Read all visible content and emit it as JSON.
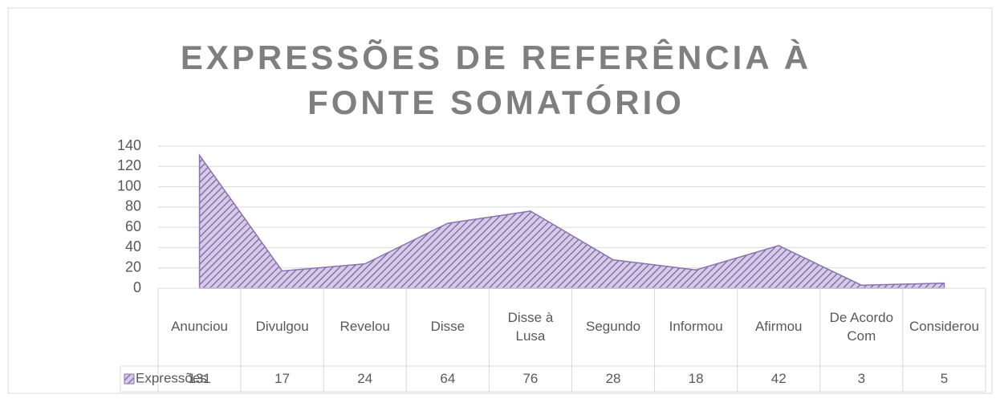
{
  "chart_data": {
    "type": "area",
    "title": "EXPRESSÕES DE REFERÊNCIA À FONTE SOMATÓRIO",
    "categories": [
      "Anunciou",
      "Divulgou",
      "Revelou",
      "Disse",
      "Disse à Lusa",
      "Segundo",
      "Informou",
      "Afirmou",
      "De Acordo Com",
      "Considerou"
    ],
    "series": [
      {
        "name": "Expressões",
        "color": "#8b72b0",
        "values": [
          131,
          17,
          24,
          64,
          76,
          28,
          18,
          42,
          3,
          5
        ]
      }
    ],
    "ylim": [
      0,
      140
    ],
    "yticks": [
      0,
      20,
      40,
      60,
      80,
      100,
      120,
      140
    ],
    "grid": true
  }
}
